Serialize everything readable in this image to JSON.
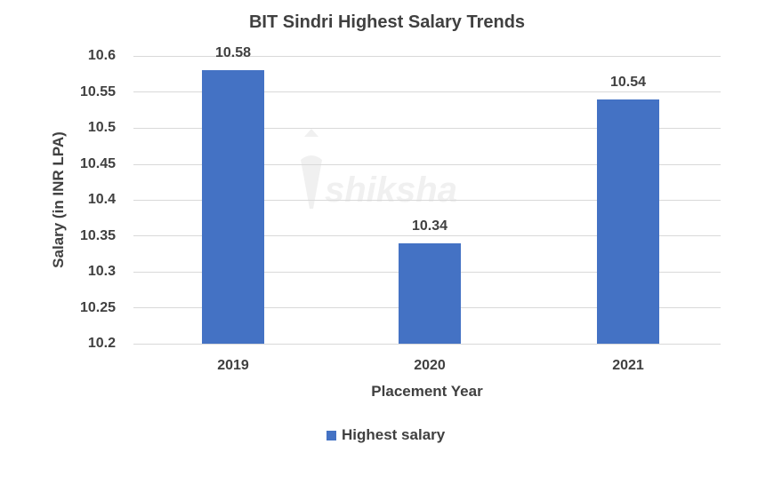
{
  "chart_data": {
    "type": "bar",
    "title": "BIT Sindri Highest Salary Trends",
    "xlabel": "Placement Year",
    "ylabel": "Salary (in INR LPA)",
    "categories": [
      "2019",
      "2020",
      "2021"
    ],
    "series": [
      {
        "name": "Highest salary",
        "values": [
          10.58,
          10.34,
          10.54
        ],
        "color": "#4472C4"
      }
    ],
    "data_labels": [
      "10.58",
      "10.34",
      "10.54"
    ],
    "ylim": [
      10.2,
      10.6
    ],
    "yticks": [
      "10.6",
      "10.55",
      "10.5",
      "10.45",
      "10.4",
      "10.35",
      "10.3",
      "10.25",
      "10.2"
    ],
    "grid": true,
    "legend_position": "bottom",
    "watermark": "shiksha"
  }
}
